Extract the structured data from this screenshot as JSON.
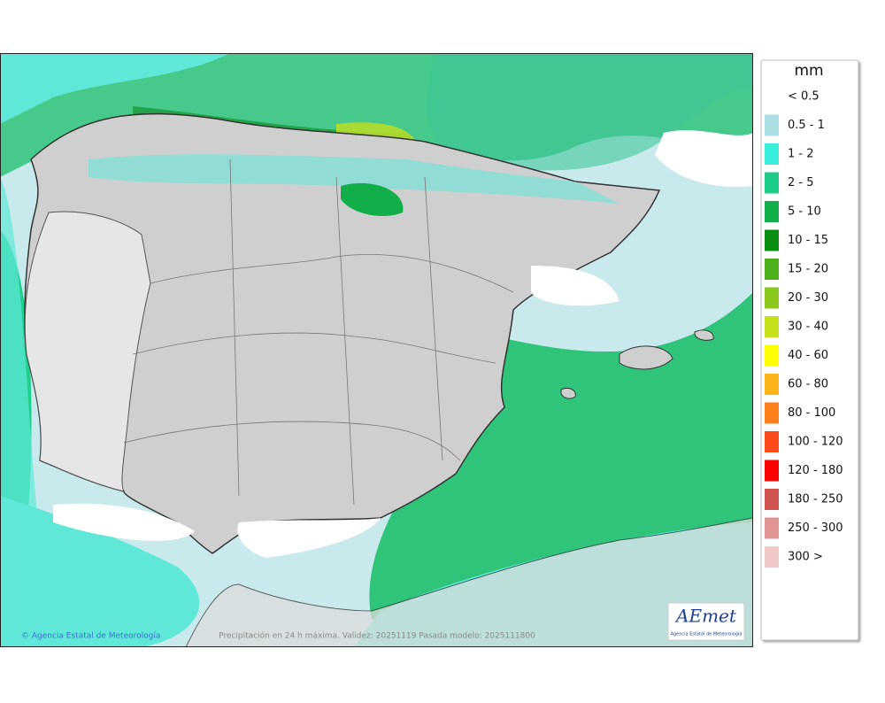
{
  "legend": {
    "title": "mm",
    "items": [
      {
        "label": "< 0.5",
        "color": "#ffffff"
      },
      {
        "label": "0.5 - 1",
        "color": "#aadfe4"
      },
      {
        "label": "1 - 2",
        "color": "#3aeedc"
      },
      {
        "label": "2 - 5",
        "color": "#1ccc88"
      },
      {
        "label": "5 - 10",
        "color": "#12ae4a"
      },
      {
        "label": "10 - 15",
        "color": "#0b8f12"
      },
      {
        "label": "15 - 20",
        "color": "#4db01c"
      },
      {
        "label": "20 - 30",
        "color": "#8ac81c"
      },
      {
        "label": "30 - 40",
        "color": "#c6e01a"
      },
      {
        "label": "40 - 60",
        "color": "#ffff00"
      },
      {
        "label": "60 - 80",
        "color": "#ffb41a"
      },
      {
        "label": "80 - 100",
        "color": "#ff7f1a"
      },
      {
        "label": "100 - 120",
        "color": "#ff4a1a"
      },
      {
        "label": "120 - 180",
        "color": "#ff0000"
      },
      {
        "label": "180 - 250",
        "color": "#d05454"
      },
      {
        "label": "250 - 300",
        "color": "#e09494"
      },
      {
        "label": "300 >",
        "color": "#f0c8c8"
      }
    ]
  },
  "footer": {
    "credit": "© Agencia Estatal de Meteorología",
    "caption": "Precipitación en 24 h máxima. Validez: 20251119 Pasada modelo: 2025111800"
  },
  "logo": {
    "name": "AEmet",
    "subtitle": "Agencia Estatal de Meteorología"
  }
}
